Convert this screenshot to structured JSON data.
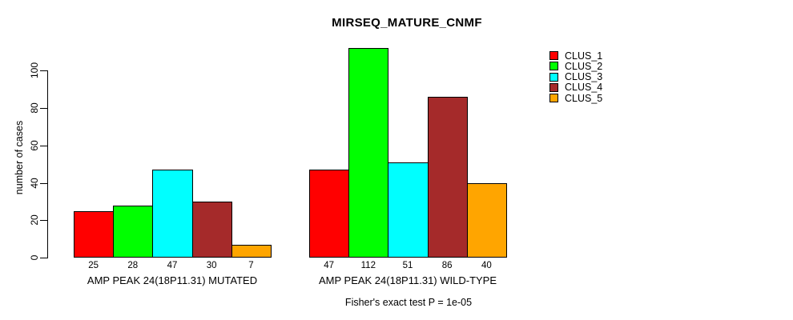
{
  "chart_data": {
    "type": "bar",
    "title": "MIRSEQ_MATURE_CNMF",
    "ylabel": "number of cases",
    "xlabel": "",
    "annotation": "Fisher's exact test P = 1e-05",
    "ylim": [
      0,
      112
    ],
    "yticks": [
      0,
      20,
      40,
      60,
      80,
      100
    ],
    "grid": false,
    "legend_position": "right-outside-top",
    "categories": [
      "AMP PEAK 24(18P11.31) MUTATED",
      "AMP PEAK 24(18P11.31) WILD-TYPE"
    ],
    "series": [
      {
        "name": "CLUS_1",
        "color": "#FF0000",
        "values": [
          25,
          47
        ]
      },
      {
        "name": "CLUS_2",
        "color": "#00FF00",
        "values": [
          28,
          112
        ]
      },
      {
        "name": "CLUS_3",
        "color": "#00FFFF",
        "values": [
          47,
          51
        ]
      },
      {
        "name": "CLUS_4",
        "color": "#A52A2A",
        "values": [
          30,
          86
        ]
      },
      {
        "name": "CLUS_5",
        "color": "#FFA500",
        "values": [
          7,
          40
        ]
      }
    ],
    "bar_value_labels_shown": true
  }
}
